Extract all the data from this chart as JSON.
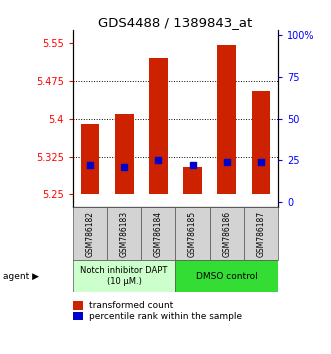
{
  "title": "GDS4488 / 1389843_at",
  "samples": [
    "GSM786182",
    "GSM786183",
    "GSM786184",
    "GSM786185",
    "GSM786186",
    "GSM786187"
  ],
  "transformed_counts": [
    5.39,
    5.41,
    5.52,
    5.305,
    5.545,
    5.455
  ],
  "percentile_ranks": [
    22,
    21,
    25,
    22,
    24,
    24
  ],
  "bar_bottom": 5.25,
  "ylim_left": [
    5.225,
    5.575
  ],
  "yticks_left": [
    5.25,
    5.325,
    5.4,
    5.475,
    5.55
  ],
  "ytick_labels_left": [
    "5.25",
    "5.325",
    "5.4",
    "5.475",
    "5.55"
  ],
  "ylim_right": [
    -3.125,
    103.125
  ],
  "yticks_right": [
    0,
    25,
    50,
    75,
    100
  ],
  "ytick_labels_right": [
    "0",
    "25",
    "50",
    "75",
    "100%"
  ],
  "bar_color": "#cc2200",
  "percentile_color": "#0000cc",
  "hline_color": "#000000",
  "hline_lw": 0.7,
  "group1_label": "Notch inhibitor DAPT\n(10 μM.)",
  "group2_label": "DMSO control",
  "group1_color": "#ccffcc",
  "group2_color": "#33dd33",
  "legend_red_label": "transformed count",
  "legend_blue_label": "percentile rank within the sample",
  "agent_label": "agent",
  "bar_width": 0.55,
  "title_fontsize": 9.5,
  "tick_fontsize": 7,
  "label_fontsize": 6.5
}
